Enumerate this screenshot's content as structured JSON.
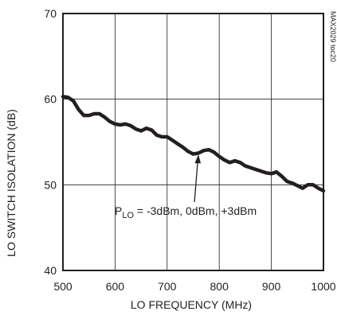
{
  "figure_id": "MAX2029 toc20",
  "chart_data": {
    "type": "line",
    "title": "",
    "xlabel": "LO FREQUENCY (MHz)",
    "ylabel": "LO SWITCH ISOLATION (dB)",
    "xlim": [
      500,
      1000
    ],
    "ylim": [
      40,
      70
    ],
    "x_ticks": [
      500,
      600,
      700,
      800,
      900,
      1000
    ],
    "y_ticks": [
      40,
      50,
      60,
      70
    ],
    "grid": true,
    "legend": "none",
    "annotation": {
      "text_main": "P",
      "text_sub": "LO",
      "text_rest": " = -3dBm, 0dBm, +3dBm",
      "points_to": {
        "x": 760,
        "y": 54
      }
    },
    "series": [
      {
        "color": "#231f20",
        "x": [
          500,
          510,
          520,
          530,
          540,
          550,
          560,
          570,
          580,
          590,
          600,
          610,
          620,
          630,
          640,
          650,
          660,
          670,
          680,
          690,
          700,
          710,
          720,
          730,
          740,
          750,
          760,
          770,
          780,
          790,
          800,
          810,
          820,
          830,
          840,
          850,
          860,
          870,
          880,
          890,
          900,
          910,
          920,
          930,
          940,
          950,
          960,
          970,
          980,
          990,
          1000
        ],
        "y": [
          60.3,
          60.2,
          59.8,
          58.8,
          58.1,
          58.1,
          58.3,
          58.3,
          57.9,
          57.4,
          57.1,
          57.0,
          57.1,
          56.9,
          56.5,
          56.3,
          56.6,
          56.4,
          55.8,
          55.6,
          55.6,
          55.2,
          54.8,
          54.4,
          53.9,
          53.6,
          53.7,
          54.0,
          54.1,
          53.8,
          53.3,
          52.9,
          52.6,
          52.8,
          52.6,
          52.2,
          52.0,
          51.8,
          51.6,
          51.4,
          51.3,
          51.5,
          51.0,
          50.4,
          50.2,
          49.9,
          49.6,
          50.0,
          50.0,
          49.6,
          49.3
        ]
      }
    ]
  }
}
